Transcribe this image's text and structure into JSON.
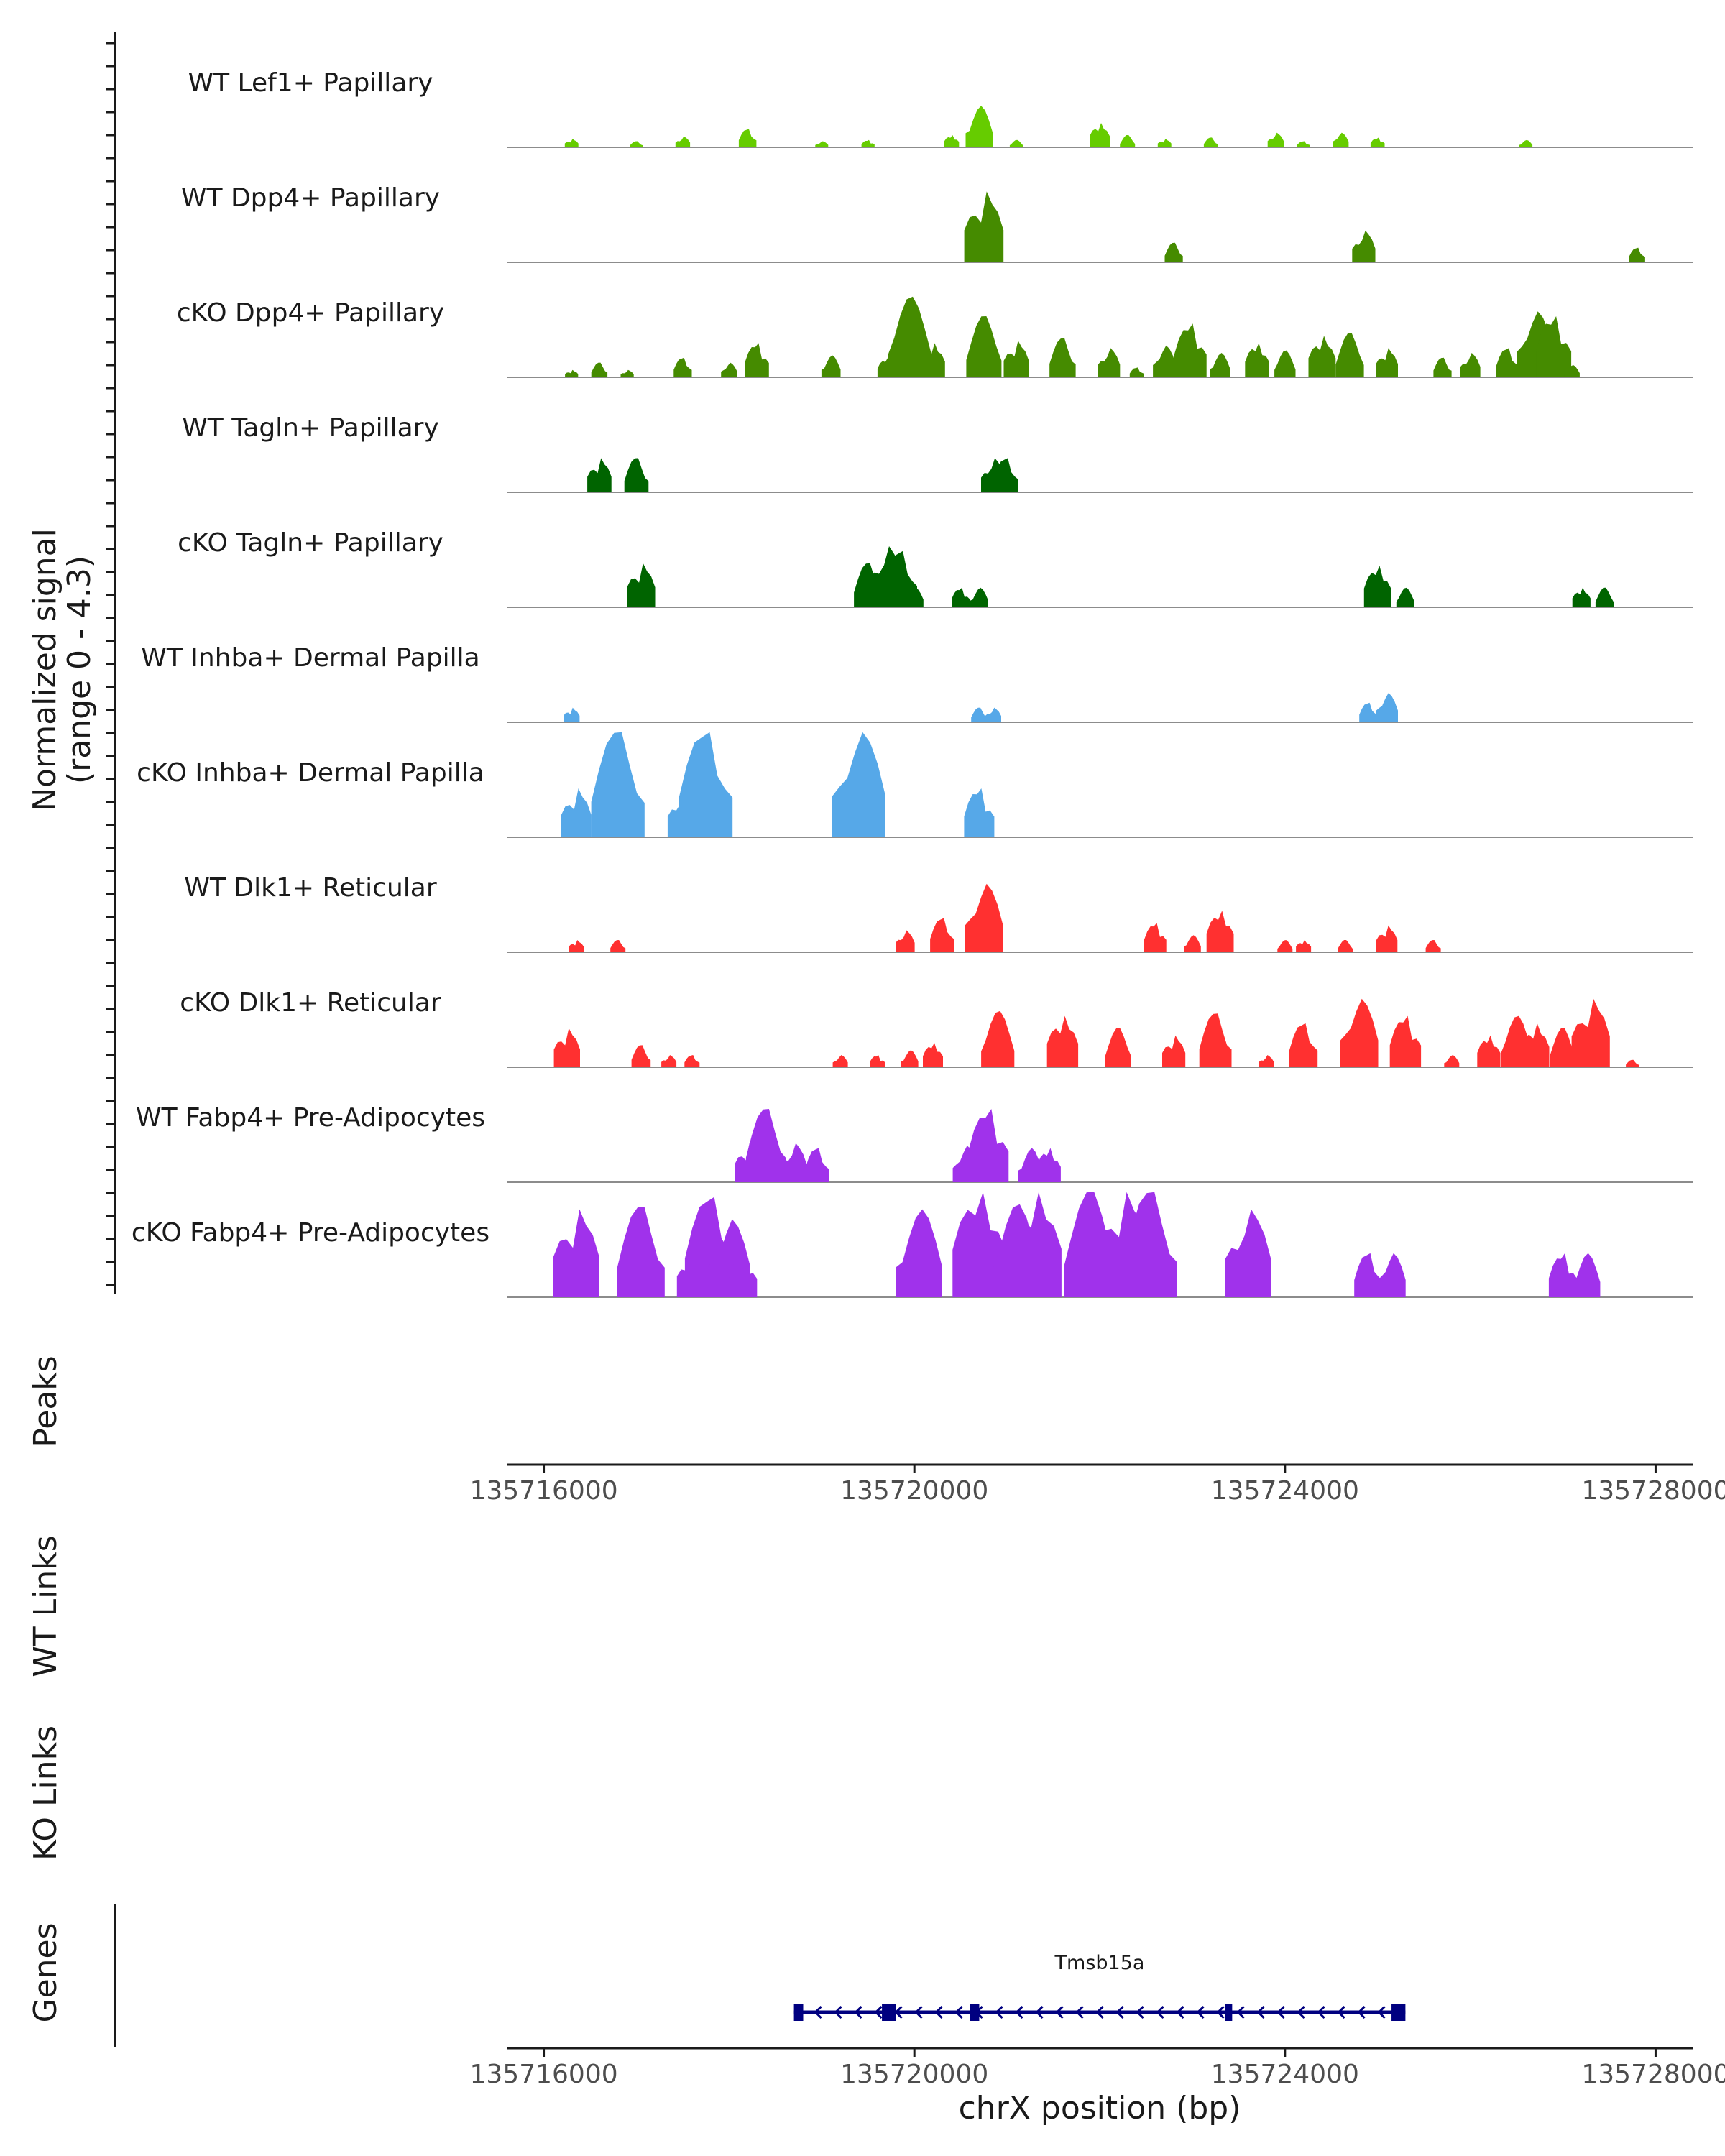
{
  "chart_data": {
    "type": "area",
    "title": "",
    "y_axis_label": "Normalized signal",
    "y_axis_range_label": "(range 0 - 4.3)",
    "ylim": [
      0,
      4.3
    ],
    "xlabel": "chrX position (bp)",
    "xlim": [
      135715600,
      135728400
    ],
    "x_ticks": [
      135716000,
      135720000,
      135724000,
      135728000
    ],
    "x_tick_labels": [
      "135716000",
      "135720000",
      "135724000",
      "135728000"
    ],
    "panel_labels": {
      "peaks": "Peaks",
      "wt_links": "WT Links",
      "ko_links": "KO Links",
      "genes": "Genes"
    },
    "tracks": [
      {
        "name": "WT Lef1+ Papillary",
        "color": "#66cc00",
        "peaks": [
          [
            135716300,
            0.35
          ],
          [
            135717000,
            0.25
          ],
          [
            135717500,
            0.45
          ],
          [
            135718200,
            0.75
          ],
          [
            135719000,
            0.25
          ],
          [
            135719500,
            0.3
          ],
          [
            135720700,
            1.7
          ],
          [
            135720400,
            0.5
          ],
          [
            135721100,
            0.3
          ],
          [
            135722000,
            1.0
          ],
          [
            135722300,
            0.5
          ],
          [
            135722700,
            0.35
          ],
          [
            135723200,
            0.4
          ],
          [
            135723900,
            0.6
          ],
          [
            135724200,
            0.25
          ],
          [
            135724600,
            0.6
          ],
          [
            135725000,
            0.4
          ],
          [
            135726600,
            0.3
          ]
        ]
      },
      {
        "name": "WT Dpp4+ Papillary",
        "color": "#458b00",
        "peaks": [
          [
            135720750,
            2.9
          ],
          [
            135722800,
            0.8
          ],
          [
            135724850,
            1.3
          ],
          [
            135727800,
            0.6
          ]
        ]
      },
      {
        "name": "cKO Dpp4+ Papillary",
        "color": "#458b00",
        "peaks": [
          [
            135716300,
            0.3
          ],
          [
            135716600,
            0.6
          ],
          [
            135716900,
            0.3
          ],
          [
            135717500,
            0.8
          ],
          [
            135718000,
            0.6
          ],
          [
            135718300,
            1.4
          ],
          [
            135719100,
            0.9
          ],
          [
            135719700,
            0.8
          ],
          [
            135719950,
            3.3
          ],
          [
            135720200,
            1.4
          ],
          [
            135720750,
            2.5
          ],
          [
            135721100,
            1.5
          ],
          [
            135721600,
            1.6
          ],
          [
            135722100,
            1.2
          ],
          [
            135722400,
            0.4
          ],
          [
            135722700,
            1.3
          ],
          [
            135722980,
            2.2
          ],
          [
            135723300,
            1.0
          ],
          [
            135723700,
            1.4
          ],
          [
            135724000,
            1.1
          ],
          [
            135724400,
            1.7
          ],
          [
            135724700,
            1.8
          ],
          [
            135725100,
            1.2
          ],
          [
            135725700,
            0.8
          ],
          [
            135726000,
            1.0
          ],
          [
            135726400,
            1.2
          ],
          [
            135726700,
            2.7
          ],
          [
            135726900,
            2.5
          ],
          [
            135727100,
            0.5
          ]
        ]
      },
      {
        "name": "WT Tagln+ Papillary",
        "color": "#006400",
        "peaks": [
          [
            135716600,
            1.4
          ],
          [
            135717000,
            1.4
          ],
          [
            135720850,
            1.4
          ],
          [
            135720990,
            1.4
          ]
        ]
      },
      {
        "name": "cKO Tagln+ Papillary",
        "color": "#006400",
        "peaks": [
          [
            135717050,
            1.8
          ],
          [
            135719500,
            1.8
          ],
          [
            135719700,
            2.5
          ],
          [
            135719850,
            2.3
          ],
          [
            135720000,
            0.8
          ],
          [
            135720500,
            0.8
          ],
          [
            135720700,
            0.8
          ],
          [
            135725000,
            1.7
          ],
          [
            135725300,
            0.8
          ],
          [
            135727200,
            0.8
          ],
          [
            135727450,
            0.8
          ]
        ]
      },
      {
        "name": "WT Inhba+ Dermal Papilla",
        "color": "#56a8e8",
        "peaks": [
          [
            135716300,
            0.6
          ],
          [
            135720700,
            0.6
          ],
          [
            135720850,
            0.6
          ],
          [
            135724900,
            0.8
          ],
          [
            135725100,
            1.2
          ]
        ]
      },
      {
        "name": "cKO Inhba+ Dermal Papilla",
        "color": "#56a8e8",
        "peaks": [
          [
            135716350,
            2.0
          ],
          [
            135716800,
            4.3
          ],
          [
            135717500,
            2.0
          ],
          [
            135717750,
            4.3
          ],
          [
            135719400,
            4.3
          ],
          [
            135720700,
            2.0
          ]
        ]
      },
      {
        "name": "WT Dlk1+ Reticular",
        "color": "#ff3030",
        "peaks": [
          [
            135716350,
            0.5
          ],
          [
            135716800,
            0.5
          ],
          [
            135719900,
            0.9
          ],
          [
            135720300,
            1.4
          ],
          [
            135720750,
            2.8
          ],
          [
            135722600,
            1.2
          ],
          [
            135723000,
            0.7
          ],
          [
            135723300,
            1.7
          ],
          [
            135724000,
            0.5
          ],
          [
            135724200,
            0.5
          ],
          [
            135724650,
            0.5
          ],
          [
            135725100,
            1.1
          ],
          [
            135725600,
            0.5
          ]
        ]
      },
      {
        "name": "cKO Dlk1+ Reticular",
        "color": "#ff3030",
        "peaks": [
          [
            135716250,
            1.6
          ],
          [
            135717050,
            0.9
          ],
          [
            135717350,
            0.5
          ],
          [
            135717600,
            0.5
          ],
          [
            135719200,
            0.5
          ],
          [
            135719600,
            0.5
          ],
          [
            135719950,
            0.7
          ],
          [
            135720200,
            1.0
          ],
          [
            135720900,
            2.3
          ],
          [
            135721600,
            2.1
          ],
          [
            135722200,
            1.6
          ],
          [
            135722800,
            1.3
          ],
          [
            135723250,
            2.2
          ],
          [
            135723800,
            0.5
          ],
          [
            135724200,
            1.8
          ],
          [
            135724800,
            2.8
          ],
          [
            135725300,
            2.1
          ],
          [
            135725800,
            0.5
          ],
          [
            135726200,
            1.3
          ],
          [
            135726500,
            2.1
          ],
          [
            135726700,
            1.8
          ],
          [
            135727000,
            1.6
          ],
          [
            135727300,
            2.8
          ],
          [
            135727750,
            0.3
          ]
        ]
      },
      {
        "name": "WT Fabp4+ Pre-Adipocytes",
        "color": "#a032eb",
        "peaks": [
          [
            135718200,
            1.6
          ],
          [
            135718400,
            3.0
          ],
          [
            135718700,
            1.6
          ],
          [
            135718950,
            1.4
          ],
          [
            135720550,
            1.5
          ],
          [
            135720800,
            3.0
          ],
          [
            135721250,
            1.4
          ],
          [
            135721450,
            1.4
          ]
        ]
      },
      {
        "name": "cKO Fabp4+ Pre-Adipocytes",
        "color": "#a032eb",
        "peaks": [
          [
            135716350,
            3.6
          ],
          [
            135717050,
            3.7
          ],
          [
            135717600,
            2.0
          ],
          [
            135717800,
            4.1
          ],
          [
            135718000,
            3.2
          ],
          [
            135718150,
            1.8
          ],
          [
            135720050,
            3.6
          ],
          [
            135720700,
            4.3
          ],
          [
            135721100,
            3.8
          ],
          [
            135721300,
            4.3
          ],
          [
            135721900,
            4.3
          ],
          [
            135722250,
            4.3
          ],
          [
            135722550,
            4.3
          ],
          [
            135723600,
            3.6
          ],
          [
            135724900,
            1.8
          ],
          [
            135725150,
            1.8
          ],
          [
            135727000,
            1.8
          ],
          [
            135727250,
            1.8
          ]
        ]
      }
    ],
    "genes": [
      {
        "name": "Tmsb15a",
        "start": 135718700,
        "end": 135725300,
        "strand": "-",
        "exons": [
          [
            135718700,
            135718800
          ],
          [
            135719650,
            135719800
          ],
          [
            135720600,
            135720700
          ],
          [
            135723350,
            135723430
          ],
          [
            135725150,
            135725300
          ]
        ]
      }
    ]
  }
}
